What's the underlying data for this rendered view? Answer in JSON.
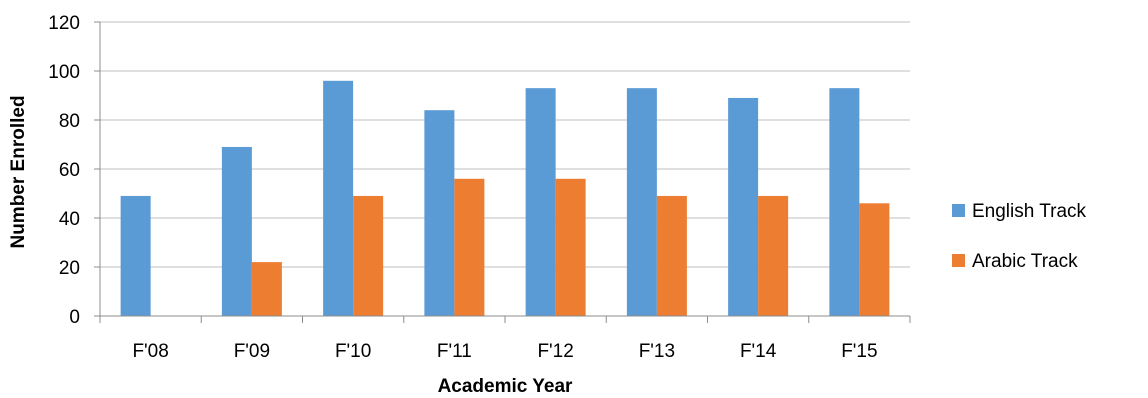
{
  "chart_data": {
    "type": "bar",
    "categories": [
      "F'08",
      "F'09",
      "F'10",
      "F'11",
      "F'12",
      "F'13",
      "F'14",
      "F'15"
    ],
    "series": [
      {
        "name": "English Track",
        "color": "#5b9bd5",
        "values": [
          49,
          69,
          96,
          84,
          93,
          93,
          89,
          93
        ]
      },
      {
        "name": "Arabic Track",
        "color": "#ed7d31",
        "values": [
          0,
          22,
          49,
          56,
          56,
          49,
          49,
          46
        ]
      }
    ],
    "xlabel": "Academic Year",
    "ylabel": "Number Enrolled",
    "ylim": [
      0,
      120
    ],
    "yticks": [
      0,
      20,
      40,
      60,
      80,
      100,
      120
    ],
    "grid": true,
    "legend_position": "right"
  }
}
